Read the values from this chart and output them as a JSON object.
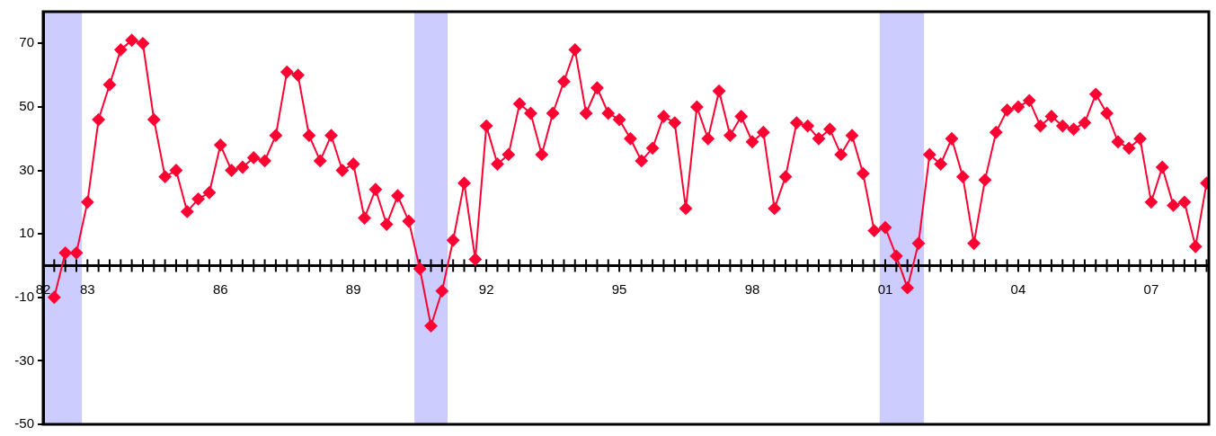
{
  "chart_data": {
    "type": "line",
    "marker": "diamond",
    "line_style": "solid",
    "legend": false,
    "x": [
      1982.25,
      1982.5,
      1982.75,
      1983,
      1983.25,
      1983.5,
      1983.75,
      1984,
      1984.25,
      1984.5,
      1984.75,
      1985,
      1985.25,
      1985.5,
      1985.75,
      1986,
      1986.25,
      1986.5,
      1986.75,
      1987,
      1987.25,
      1987.5,
      1987.75,
      1988,
      1988.25,
      1988.5,
      1988.75,
      1989,
      1989.25,
      1989.5,
      1989.75,
      1990,
      1990.25,
      1990.5,
      1990.75,
      1991,
      1991.25,
      1991.5,
      1991.75,
      1992,
      1992.25,
      1992.5,
      1992.75,
      1993,
      1993.25,
      1993.5,
      1993.75,
      1994,
      1994.25,
      1994.5,
      1994.75,
      1995,
      1995.25,
      1995.5,
      1995.75,
      1996,
      1996.25,
      1996.5,
      1996.75,
      1997,
      1997.25,
      1997.5,
      1997.75,
      1998,
      1998.25,
      1998.5,
      1998.75,
      1999,
      1999.25,
      1999.5,
      1999.75,
      2000,
      2000.25,
      2000.5,
      2000.75,
      2001,
      2001.25,
      2001.5,
      2001.75,
      2002,
      2002.25,
      2002.5,
      2002.75,
      2003,
      2003.25,
      2003.5,
      2003.75,
      2004,
      2004.25,
      2004.5,
      2004.75,
      2005,
      2005.25,
      2005.5,
      2005.75,
      2006,
      2006.25,
      2006.5,
      2006.75,
      2007,
      2007.25,
      2007.5,
      2007.75,
      2008,
      2008.25
    ],
    "series": [
      {
        "color": "#ff0033",
        "values": [
          -10,
          4,
          4,
          20,
          46,
          57,
          68,
          71,
          70,
          46,
          28,
          30,
          17,
          21,
          23,
          38,
          30,
          31,
          34,
          33,
          41,
          61,
          60,
          41,
          33,
          41,
          30,
          32,
          15,
          24,
          13,
          22,
          14,
          -1,
          -19,
          -8,
          8,
          26,
          2,
          44,
          32,
          35,
          51,
          48,
          35,
          48,
          58,
          68,
          48,
          56,
          48,
          46,
          40,
          33,
          37,
          47,
          45,
          18,
          50,
          40,
          55,
          41,
          47,
          39,
          42,
          18,
          28,
          45,
          44,
          40,
          43,
          35,
          41,
          29,
          11,
          12,
          3,
          -7,
          7,
          35,
          32,
          40,
          28,
          7,
          27,
          42,
          49,
          50,
          52,
          44,
          47,
          44,
          43,
          45,
          54,
          48,
          39,
          37,
          40,
          20,
          31,
          19,
          20,
          6,
          26
        ]
      }
    ],
    "xlim": [
      1982,
      2008.3
    ],
    "ylim": [
      -50,
      80
    ],
    "yticks": [
      -50,
      -30,
      -10,
      10,
      30,
      50,
      70
    ],
    "xticks": [
      {
        "value": 1982,
        "label": "82"
      },
      {
        "value": 1982.25,
        "label": null
      },
      {
        "value": 1982.5,
        "label": null
      },
      {
        "value": 1982.75,
        "label": null
      },
      {
        "value": 1983,
        "label": "83"
      },
      {
        "value": 1983.25,
        "label": null
      },
      {
        "value": 1983.5,
        "label": null
      },
      {
        "value": 1983.75,
        "label": null
      },
      {
        "value": 1984,
        "label": null
      },
      {
        "value": 1984.25,
        "label": null
      },
      {
        "value": 1984.5,
        "label": null
      },
      {
        "value": 1984.75,
        "label": null
      },
      {
        "value": 1985,
        "label": null
      },
      {
        "value": 1985.25,
        "label": null
      },
      {
        "value": 1985.5,
        "label": null
      },
      {
        "value": 1985.75,
        "label": null
      },
      {
        "value": 1986,
        "label": "86"
      },
      {
        "value": 1986.25,
        "label": null
      },
      {
        "value": 1986.5,
        "label": null
      },
      {
        "value": 1986.75,
        "label": null
      },
      {
        "value": 1987,
        "label": null
      },
      {
        "value": 1987.25,
        "label": null
      },
      {
        "value": 1987.5,
        "label": null
      },
      {
        "value": 1987.75,
        "label": null
      },
      {
        "value": 1988,
        "label": null
      },
      {
        "value": 1988.25,
        "label": null
      },
      {
        "value": 1988.5,
        "label": null
      },
      {
        "value": 1988.75,
        "label": null
      },
      {
        "value": 1989,
        "label": "89"
      },
      {
        "value": 1989.25,
        "label": null
      },
      {
        "value": 1989.5,
        "label": null
      },
      {
        "value": 1989.75,
        "label": null
      },
      {
        "value": 1990,
        "label": null
      },
      {
        "value": 1990.25,
        "label": null
      },
      {
        "value": 1990.5,
        "label": null
      },
      {
        "value": 1990.75,
        "label": null
      },
      {
        "value": 1991,
        "label": null
      },
      {
        "value": 1991.25,
        "label": null
      },
      {
        "value": 1991.5,
        "label": null
      },
      {
        "value": 1991.75,
        "label": null
      },
      {
        "value": 1992,
        "label": "92"
      },
      {
        "value": 1992.25,
        "label": null
      },
      {
        "value": 1992.5,
        "label": null
      },
      {
        "value": 1992.75,
        "label": null
      },
      {
        "value": 1993,
        "label": null
      },
      {
        "value": 1993.25,
        "label": null
      },
      {
        "value": 1993.5,
        "label": null
      },
      {
        "value": 1993.75,
        "label": null
      },
      {
        "value": 1994,
        "label": null
      },
      {
        "value": 1994.25,
        "label": null
      },
      {
        "value": 1994.5,
        "label": null
      },
      {
        "value": 1994.75,
        "label": null
      },
      {
        "value": 1995,
        "label": "95"
      },
      {
        "value": 1995.25,
        "label": null
      },
      {
        "value": 1995.5,
        "label": null
      },
      {
        "value": 1995.75,
        "label": null
      },
      {
        "value": 1996,
        "label": null
      },
      {
        "value": 1996.25,
        "label": null
      },
      {
        "value": 1996.5,
        "label": null
      },
      {
        "value": 1996.75,
        "label": null
      },
      {
        "value": 1997,
        "label": null
      },
      {
        "value": 1997.25,
        "label": null
      },
      {
        "value": 1997.5,
        "label": null
      },
      {
        "value": 1997.75,
        "label": null
      },
      {
        "value": 1998,
        "label": "98"
      },
      {
        "value": 1998.25,
        "label": null
      },
      {
        "value": 1998.5,
        "label": null
      },
      {
        "value": 1998.75,
        "label": null
      },
      {
        "value": 1999,
        "label": null
      },
      {
        "value": 1999.25,
        "label": null
      },
      {
        "value": 1999.5,
        "label": null
      },
      {
        "value": 1999.75,
        "label": null
      },
      {
        "value": 2000,
        "label": null
      },
      {
        "value": 2000.25,
        "label": null
      },
      {
        "value": 2000.5,
        "label": null
      },
      {
        "value": 2000.75,
        "label": null
      },
      {
        "value": 2001,
        "label": "01"
      },
      {
        "value": 2001.25,
        "label": null
      },
      {
        "value": 2001.5,
        "label": null
      },
      {
        "value": 2001.75,
        "label": null
      },
      {
        "value": 2002,
        "label": null
      },
      {
        "value": 2002.25,
        "label": null
      },
      {
        "value": 2002.5,
        "label": null
      },
      {
        "value": 2002.75,
        "label": null
      },
      {
        "value": 2003,
        "label": null
      },
      {
        "value": 2003.25,
        "label": null
      },
      {
        "value": 2003.5,
        "label": null
      },
      {
        "value": 2003.75,
        "label": null
      },
      {
        "value": 2004,
        "label": "04"
      },
      {
        "value": 2004.25,
        "label": null
      },
      {
        "value": 2004.5,
        "label": null
      },
      {
        "value": 2004.75,
        "label": null
      },
      {
        "value": 2005,
        "label": null
      },
      {
        "value": 2005.25,
        "label": null
      },
      {
        "value": 2005.5,
        "label": null
      },
      {
        "value": 2005.75,
        "label": null
      },
      {
        "value": 2006,
        "label": null
      },
      {
        "value": 2006.25,
        "label": null
      },
      {
        "value": 2006.5,
        "label": null
      },
      {
        "value": 2006.75,
        "label": null
      },
      {
        "value": 2007,
        "label": "07"
      },
      {
        "value": 2007.25,
        "label": null
      },
      {
        "value": 2007.5,
        "label": null
      },
      {
        "value": 2007.75,
        "label": null
      },
      {
        "value": 2008,
        "label": null
      },
      {
        "value": 2008.25,
        "label": null
      }
    ],
    "bands": [
      {
        "axis": "x",
        "from": 1982,
        "to": 1982.875,
        "color": "#ccccff"
      },
      {
        "axis": "x",
        "from": 1990.375,
        "to": 1991.125,
        "color": "#ccccff"
      },
      {
        "axis": "x",
        "from": 2000.875,
        "to": 2001.875,
        "color": "#ccccff"
      }
    ]
  }
}
